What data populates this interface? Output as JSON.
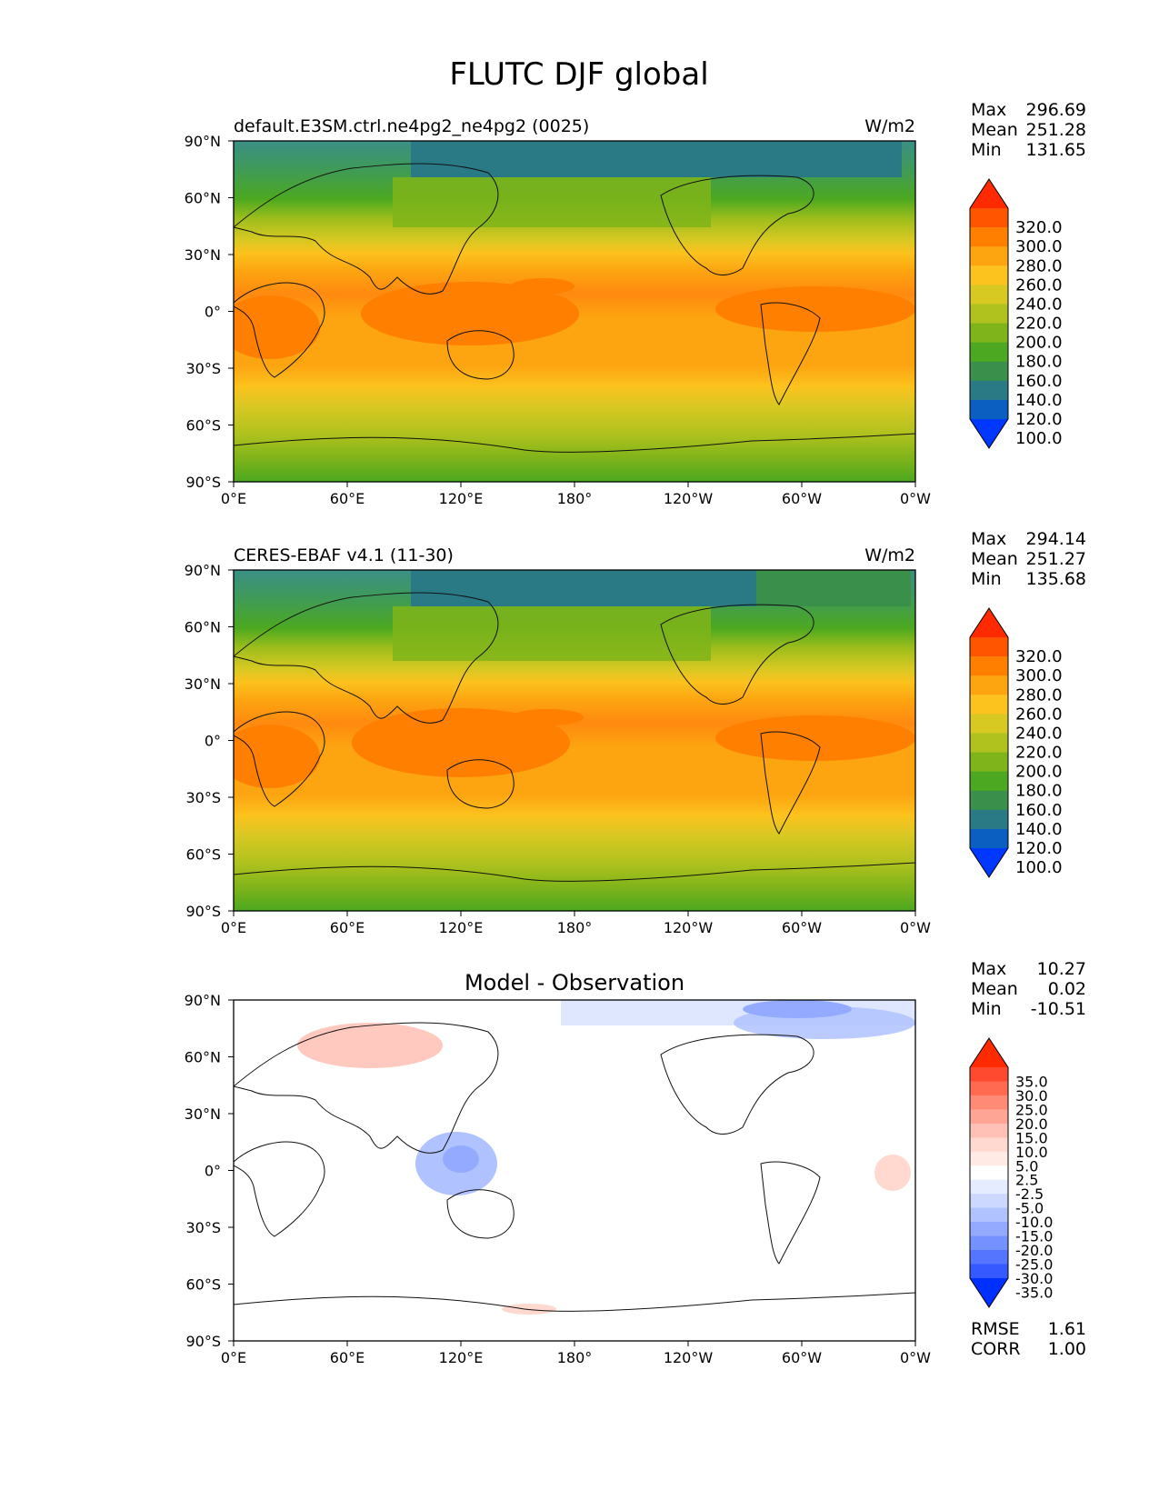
{
  "figure": {
    "title": "FLUTC DJF global"
  },
  "axis_ticks": {
    "x": [
      "0°E",
      "60°E",
      "120°E",
      "180°",
      "120°W",
      "60°W",
      "0°W"
    ],
    "y": [
      "90°N",
      "60°N",
      "30°N",
      "0°",
      "30°S",
      "60°S",
      "90°S"
    ]
  },
  "panels": [
    {
      "title": "default.E3SM.ctrl.ne4pg2_ne4pg2 (0025)",
      "units": "W/m2",
      "stats": [
        {
          "label": "Max",
          "value": "296.69"
        },
        {
          "label": "Mean",
          "value": "251.28"
        },
        {
          "label": "Min",
          "value": "131.65"
        }
      ],
      "colorbar": {
        "labels": [
          "320.0",
          "300.0",
          "280.0",
          "260.0",
          "240.0",
          "220.0",
          "200.0",
          "180.0",
          "160.0",
          "140.0",
          "120.0",
          "100.0"
        ],
        "colors": [
          "#ff2a00",
          "#ff5500",
          "#ff7f00",
          "#fca510",
          "#fcc21e",
          "#d8c822",
          "#b0c21e",
          "#7fb41a",
          "#4ca820",
          "#3a8f4a",
          "#2a7a86",
          "#0a5fc0",
          "#0038ff"
        ]
      }
    },
    {
      "title": "CERES-EBAF v4.1 (11-30)",
      "units": "W/m2",
      "stats": [
        {
          "label": "Max",
          "value": "294.14"
        },
        {
          "label": "Mean",
          "value": "251.27"
        },
        {
          "label": "Min",
          "value": "135.68"
        }
      ],
      "colorbar": {
        "labels": [
          "320.0",
          "300.0",
          "280.0",
          "260.0",
          "240.0",
          "220.0",
          "200.0",
          "180.0",
          "160.0",
          "140.0",
          "120.0",
          "100.0"
        ],
        "colors": [
          "#ff2a00",
          "#ff5500",
          "#ff7f00",
          "#fca510",
          "#fcc21e",
          "#d8c822",
          "#b0c21e",
          "#7fb41a",
          "#4ca820",
          "#3a8f4a",
          "#2a7a86",
          "#0a5fc0",
          "#0038ff"
        ]
      }
    },
    {
      "title": "Model - Observation",
      "units": "",
      "stats": [
        {
          "label": "Max",
          "value": "10.27"
        },
        {
          "label": "Mean",
          "value": "0.02"
        },
        {
          "label": "Min",
          "value": "-10.51"
        }
      ],
      "extra_stats": [
        {
          "label": "RMSE",
          "value": "1.61"
        },
        {
          "label": "CORR",
          "value": "1.00"
        }
      ],
      "colorbar": {
        "labels": [
          "35.0",
          "30.0",
          "25.0",
          "20.0",
          "15.0",
          "10.0",
          "5.0",
          "2.5",
          "-2.5",
          "-5.0",
          "-10.0",
          "-15.0",
          "-20.0",
          "-25.0",
          "-30.0",
          "-35.0"
        ],
        "colors": [
          "#ff2a00",
          "#ff4a30",
          "#ff6a50",
          "#ff8a75",
          "#ffa595",
          "#ffc0b5",
          "#ffd8d0",
          "#ffeae6",
          "#ffffff",
          "#e6ecff",
          "#ccd8ff",
          "#b0c2ff",
          "#93aaff",
          "#7590ff",
          "#5575ff",
          "#3558ff",
          "#0030ff"
        ]
      }
    }
  ],
  "chart_data": [
    {
      "type": "heatmap",
      "title": "default.E3SM.ctrl.ne4pg2_ne4pg2 (0025)",
      "units": "W/m2",
      "x_range": [
        0,
        360
      ],
      "y_range": [
        -90,
        90
      ],
      "levels": [
        100,
        120,
        140,
        160,
        180,
        200,
        220,
        240,
        260,
        280,
        300,
        320
      ],
      "zonal_mean_profile": {
        "lat": [
          90,
          75,
          60,
          45,
          30,
          15,
          0,
          -15,
          -30,
          -45,
          -60,
          -75,
          -90
        ],
        "value": [
          165,
          185,
          210,
          235,
          260,
          272,
          270,
          265,
          255,
          240,
          220,
          205,
          185
        ]
      },
      "stats": {
        "max": 296.69,
        "mean": 251.28,
        "min": 131.65
      }
    },
    {
      "type": "heatmap",
      "title": "CERES-EBAF v4.1 (11-30)",
      "units": "W/m2",
      "x_range": [
        0,
        360
      ],
      "y_range": [
        -90,
        90
      ],
      "levels": [
        100,
        120,
        140,
        160,
        180,
        200,
        220,
        240,
        260,
        280,
        300,
        320
      ],
      "zonal_mean_profile": {
        "lat": [
          90,
          75,
          60,
          45,
          30,
          15,
          0,
          -15,
          -30,
          -45,
          -60,
          -75,
          -90
        ],
        "value": [
          160,
          182,
          208,
          234,
          260,
          273,
          270,
          266,
          256,
          241,
          221,
          204,
          185
        ]
      },
      "stats": {
        "max": 294.14,
        "mean": 251.27,
        "min": 135.68
      }
    },
    {
      "type": "heatmap",
      "title": "Model - Observation",
      "units": "",
      "x_range": [
        0,
        360
      ],
      "y_range": [
        -90,
        90
      ],
      "levels": [
        -35,
        -30,
        -25,
        -20,
        -15,
        -10,
        -5,
        -2.5,
        2.5,
        5,
        10,
        15,
        20,
        25,
        30,
        35
      ],
      "stats": {
        "max": 10.27,
        "mean": 0.02,
        "min": -10.51,
        "rmse": 1.61,
        "corr": 1.0
      }
    }
  ]
}
